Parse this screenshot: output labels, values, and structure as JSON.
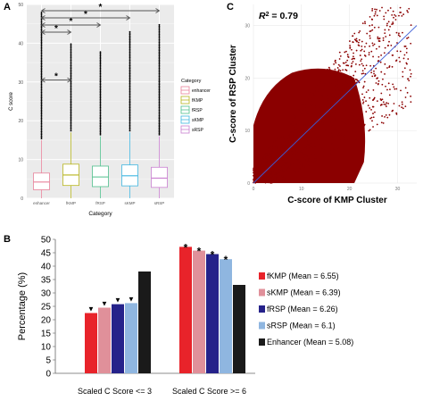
{
  "panels": {
    "a": "A",
    "b": "B",
    "c": "C"
  },
  "chart_data": [
    {
      "panel": "A",
      "type": "box",
      "xlabel": "Category",
      "ylabel": "C score",
      "ylim": [
        0,
        50
      ],
      "yticks": [
        "0",
        "10",
        "20",
        "30",
        "40",
        "50"
      ],
      "grid": true,
      "categories": [
        "enhancer",
        "fKMP",
        "fRSP",
        "sKMP",
        "sRSP"
      ],
      "boxes": [
        {
          "min": 0,
          "q1": 2.2,
          "median": 4.2,
          "q3": 6.5,
          "whisker_high": 15,
          "outlier_max": 48
        },
        {
          "min": 0,
          "q1": 3.3,
          "median": 6.0,
          "q3": 8.8,
          "whisker_high": 17,
          "outlier_max": 40
        },
        {
          "min": 0,
          "q1": 3.0,
          "median": 5.5,
          "q3": 8.3,
          "whisker_high": 16,
          "outlier_max": 38
        },
        {
          "min": 0,
          "q1": 3.2,
          "median": 5.8,
          "q3": 8.6,
          "whisker_high": 17,
          "outlier_max": 43
        },
        {
          "min": 0,
          "q1": 2.8,
          "median": 5.2,
          "q3": 8.0,
          "whisker_high": 16,
          "outlier_max": 45
        }
      ],
      "colors": [
        "#e8829a",
        "#b7b51e",
        "#4fbf8c",
        "#3fb6e0",
        "#c97fd0"
      ],
      "legend": {
        "title": "Category",
        "items": [
          "enhancer",
          "fKMP",
          "fRSP",
          "sKMP",
          "sRSP"
        ],
        "placement": "right"
      },
      "significance": [
        {
          "from": "enhancer",
          "to": "sRSP",
          "label": "*"
        },
        {
          "from": "enhancer",
          "to": "sKMP",
          "label": "*"
        },
        {
          "from": "enhancer",
          "to": "fRSP",
          "label": "*"
        },
        {
          "from": "enhancer",
          "to": "fKMP",
          "label": "*"
        },
        {
          "from": "enhancer",
          "to": "fKMP",
          "label": "*",
          "low": true
        }
      ]
    },
    {
      "panel": "B",
      "type": "bar",
      "ylabel": "Percentage (%)",
      "ylim": [
        0,
        50
      ],
      "yticks": [
        "0",
        "5",
        "10",
        "15",
        "20",
        "25",
        "30",
        "35",
        "40",
        "45",
        "50"
      ],
      "categories": [
        "Scaled C Score <= 3",
        "Scaled C Score >= 6"
      ],
      "series": [
        {
          "name": "fKMP (Mean = 6.55)",
          "color": "#e8232a",
          "values": [
            22.5,
            47.2
          ],
          "marker": [
            "▼",
            "*"
          ]
        },
        {
          "name": "sKMP (Mean = 6.39)",
          "color": "#e0909a",
          "values": [
            24.5,
            45.8
          ],
          "marker": [
            "▼",
            "*"
          ]
        },
        {
          "name": "fRSP (Mean = 6.26)",
          "color": "#25228a",
          "values": [
            25.8,
            44.5
          ],
          "marker": [
            "▼",
            "*"
          ]
        },
        {
          "name": "sRSP (Mean = 6.1)",
          "color": "#8fb6e0",
          "values": [
            26.2,
            42.6
          ],
          "marker": [
            "▼",
            "*"
          ]
        },
        {
          "name": "Enhancer (Mean = 5.08)",
          "color": "#1a1a1a",
          "values": [
            38.0,
            33.0
          ],
          "marker": [
            "",
            ""
          ]
        }
      ],
      "legend_placement": "right"
    },
    {
      "panel": "C",
      "type": "scatter",
      "title": "R² = 0.79",
      "r2_prefix": "R",
      "r2_sup": "2",
      "r2_value": " = 0.79",
      "xlabel": "C-score of KMP Cluster",
      "ylabel": "C-score of RSP Cluster",
      "xlim": [
        0,
        34
      ],
      "ylim": [
        0,
        34
      ],
      "xticks": [
        "0",
        "10",
        "20",
        "30"
      ],
      "yticks": [
        "0",
        "10",
        "20",
        "30"
      ],
      "point_color": "#8b0000",
      "fit_line": {
        "x": [
          0,
          34
        ],
        "y": [
          0,
          30
        ],
        "color": "#3b5bd6"
      }
    }
  ]
}
